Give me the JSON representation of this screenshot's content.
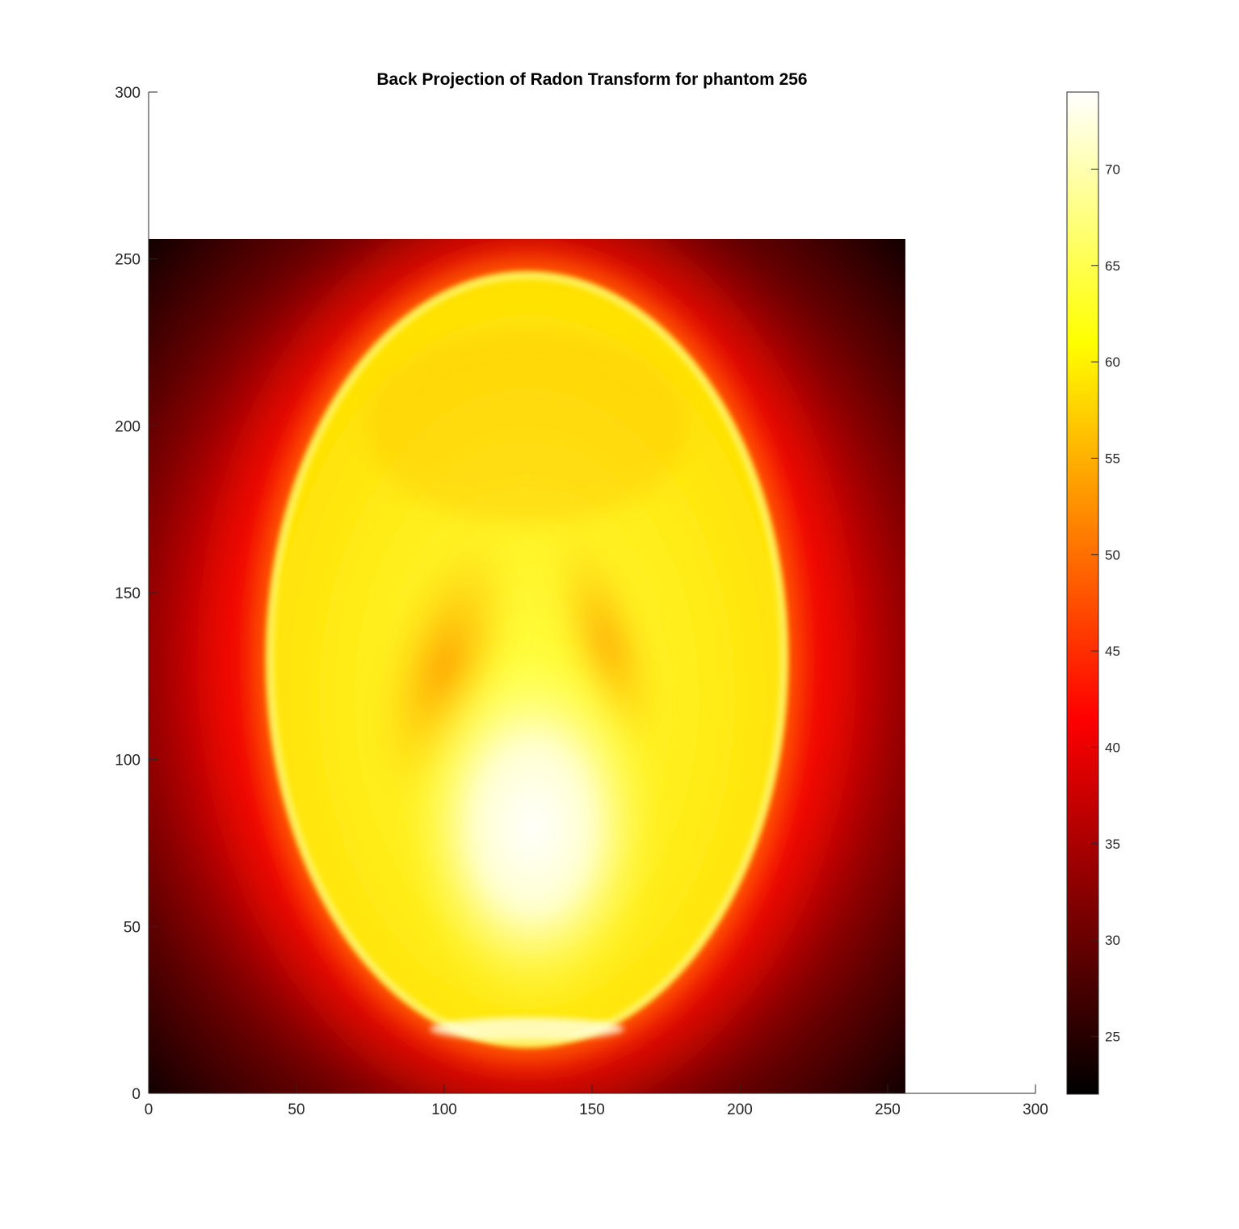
{
  "chart_data": {
    "type": "heatmap",
    "title": "Back Projection of Radon Transform for phantom 256",
    "xlabel": "",
    "ylabel": "",
    "xlim": [
      0,
      300
    ],
    "ylim": [
      0,
      300
    ],
    "image_extent": {
      "x": [
        0,
        256
      ],
      "y": [
        0,
        256
      ]
    },
    "x_ticks": [
      "0",
      "50",
      "100",
      "150",
      "200",
      "250",
      "300"
    ],
    "y_ticks": [
      "0",
      "50",
      "100",
      "150",
      "200",
      "250",
      "300"
    ],
    "colormap": "hot",
    "colorbar": {
      "clim": [
        22,
        74
      ],
      "ticks": [
        "25",
        "30",
        "35",
        "40",
        "45",
        "50",
        "55",
        "60",
        "65",
        "70"
      ]
    },
    "features": [
      {
        "name": "outer ellipse (skull)",
        "center": [
          128,
          130
        ],
        "semi_axes": [
          88,
          116
        ],
        "value_edge": 62
      },
      {
        "name": "interior",
        "value": 60
      },
      {
        "name": "left dark ellipse",
        "center": [
          100,
          128
        ],
        "value": 52
      },
      {
        "name": "right dark ellipse",
        "center": [
          155,
          135
        ],
        "value": 56
      },
      {
        "name": "bright spot",
        "center": [
          130,
          75
        ],
        "value": 74
      }
    ],
    "background_value_range": [
      22,
      42
    ]
  }
}
